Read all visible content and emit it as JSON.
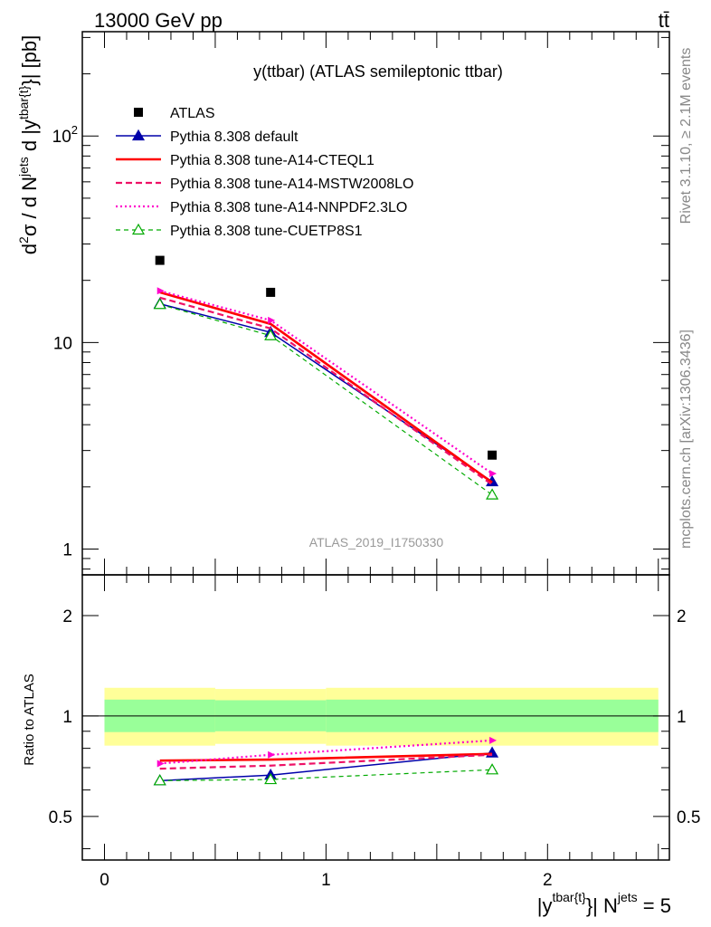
{
  "header": {
    "energy_label": "13000 GeV pp",
    "process_label": "tt̄"
  },
  "side": {
    "rivet_label": "Rivet 3.1.10, ≥ 2.1M events",
    "mcplots_label": "mcplots.cern.ch [arXiv:1306.3436]"
  },
  "chart_data": {
    "type": "line",
    "title": "y(ttbar) (ATLAS semileptonic ttbar)",
    "analysis_label": "ATLAS_2019_I1750330",
    "ylabel": {
      "prefix": "d",
      "sup1": "2",
      "mid1": "σ / d N",
      "sup2": "jets",
      "mid2": " d |y",
      "sup3": "tbar{t}",
      "tail": "}| [pb]"
    },
    "xlabel": {
      "pre": "|y",
      "sup1": "tbar{t}",
      "mid": "}| N",
      "sup2": "jets",
      "tail": " = 5"
    },
    "ratio_ylabel": "Ratio to ATLAS",
    "xlim": [
      -0.1,
      2.55
    ],
    "ylim_main": [
      0.75,
      320
    ],
    "yscale_main": "log",
    "ylim_ratio": [
      0.37,
      2.65
    ],
    "yscale_ratio": "log",
    "main_ticks": [
      {
        "value": 1,
        "label": "1",
        "sup": ""
      },
      {
        "value": 10,
        "label": "10",
        "sup": ""
      },
      {
        "value": 100,
        "label": "10",
        "sup": "2"
      }
    ],
    "x_ticks": [
      {
        "value": 0,
        "label": "0"
      },
      {
        "value": 1,
        "label": "1"
      },
      {
        "value": 2,
        "label": "2"
      }
    ],
    "ratio_ticks": [
      {
        "value": 0.5,
        "label": "0.5"
      },
      {
        "value": 1,
        "label": "1"
      },
      {
        "value": 2,
        "label": "2"
      }
    ],
    "bins": [
      {
        "lo": 0.0,
        "hi": 0.5,
        "band_inner": [
          0.895,
          1.12
        ],
        "band_outer": [
          0.815,
          1.215
        ]
      },
      {
        "lo": 0.5,
        "hi": 1.0,
        "band_inner": [
          0.9,
          1.115
        ],
        "band_outer": [
          0.825,
          1.205
        ]
      },
      {
        "lo": 1.0,
        "hi": 2.5,
        "band_inner": [
          0.895,
          1.12
        ],
        "band_outer": [
          0.815,
          1.215
        ]
      }
    ],
    "x": [
      0.25,
      0.75,
      1.75
    ],
    "data": {
      "name": "ATLAS",
      "values": [
        25.0,
        17.5,
        2.85
      ],
      "color": "#000000"
    },
    "series": [
      {
        "name": "Pythia 8.308 default",
        "values": [
          15.4,
          11.2,
          2.12
        ],
        "ratio": [
          0.64,
          0.665,
          0.775
        ],
        "color": "#0000aa",
        "dash": "",
        "width": 1.5,
        "marker": "triangle-filled"
      },
      {
        "name": "Pythia 8.308 tune-A14-CTEQL1",
        "values": [
          17.5,
          12.3,
          2.1
        ],
        "ratio": [
          0.735,
          0.74,
          0.77
        ],
        "color": "#ff0000",
        "dash": "",
        "width": 2.6,
        "marker": "none"
      },
      {
        "name": "Pythia 8.308 tune-A14-MSTW2008LO",
        "values": [
          16.5,
          11.7,
          2.05
        ],
        "ratio": [
          0.695,
          0.71,
          0.765
        ],
        "color": "#ee1166",
        "dash": "7,4",
        "width": 2.2,
        "marker": "none"
      },
      {
        "name": "Pythia 8.308 tune-A14-NNPDF2.3LO",
        "values": [
          17.8,
          12.8,
          2.32
        ],
        "ratio": [
          0.72,
          0.765,
          0.845
        ],
        "color": "#ff00cc",
        "dash": "2,3",
        "width": 2.2,
        "marker": "arrow"
      },
      {
        "name": "Pythia 8.308 tune-CUETP8S1",
        "values": [
          15.3,
          10.8,
          1.83
        ],
        "ratio": [
          0.64,
          0.645,
          0.69
        ],
        "color": "#00aa00",
        "dash": "5,4",
        "width": 1.2,
        "marker": "triangle-open"
      }
    ],
    "legend_position": "top-left",
    "grid": false
  }
}
